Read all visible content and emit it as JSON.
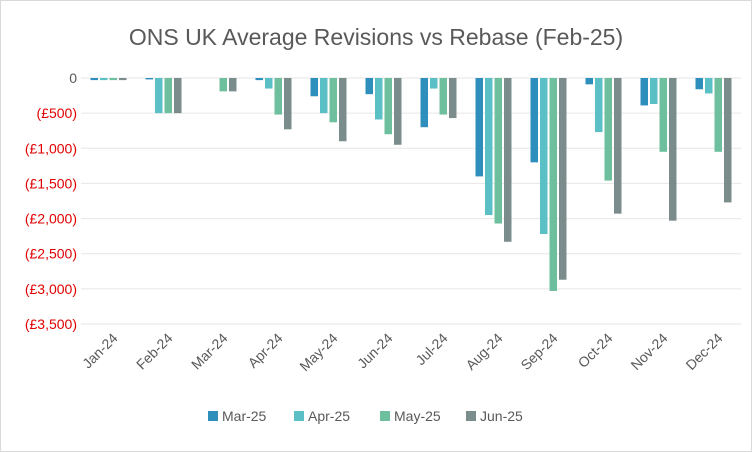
{
  "chart_data": {
    "type": "bar",
    "title": "ONS UK Average Revisions vs Rebase (Feb-25)",
    "categories": [
      "Jan-24",
      "Feb-24",
      "Mar-24",
      "Apr-24",
      "May-24",
      "Jun-24",
      "Jul-24",
      "Aug-24",
      "Sep-24",
      "Oct-24",
      "Nov-24",
      "Dec-24"
    ],
    "series": [
      {
        "name": "Mar-25",
        "color": "#2e8fbd",
        "values": [
          -30,
          -20,
          0,
          -30,
          -260,
          -230,
          -700,
          -1400,
          -1200,
          -90,
          -390,
          -160
        ]
      },
      {
        "name": "Apr-25",
        "color": "#5bbfc6",
        "values": [
          -30,
          -500,
          0,
          -150,
          -500,
          -590,
          -150,
          -1950,
          -2220,
          -770,
          -370,
          -220
        ]
      },
      {
        "name": "May-25",
        "color": "#6dbf9e",
        "values": [
          -30,
          -500,
          -190,
          -520,
          -630,
          -800,
          -520,
          -2070,
          -3030,
          -1460,
          -1050,
          -1050
        ]
      },
      {
        "name": "Jun-25",
        "color": "#7a8c8c",
        "values": [
          -30,
          -500,
          -190,
          -730,
          -900,
          -950,
          -570,
          -2330,
          -2870,
          -1930,
          -2030,
          -1770
        ]
      }
    ],
    "ylim": [
      -3500,
      0
    ],
    "yticks": [
      0,
      -500,
      -1000,
      -1500,
      -2000,
      -2500,
      -3000,
      -3500
    ],
    "ytick_labels": [
      "0",
      "(£500)",
      "(£1,000)",
      "(£1,500)",
      "(£2,000)",
      "(£2,500)",
      "(£3,000)",
      "(£3,500)"
    ],
    "zero_label_color": "#595959",
    "negative_label_color": "#e00000",
    "gridline_color": "#e6e6e6",
    "xlabel": "",
    "ylabel": "",
    "grid": true,
    "legend_position": "bottom"
  }
}
